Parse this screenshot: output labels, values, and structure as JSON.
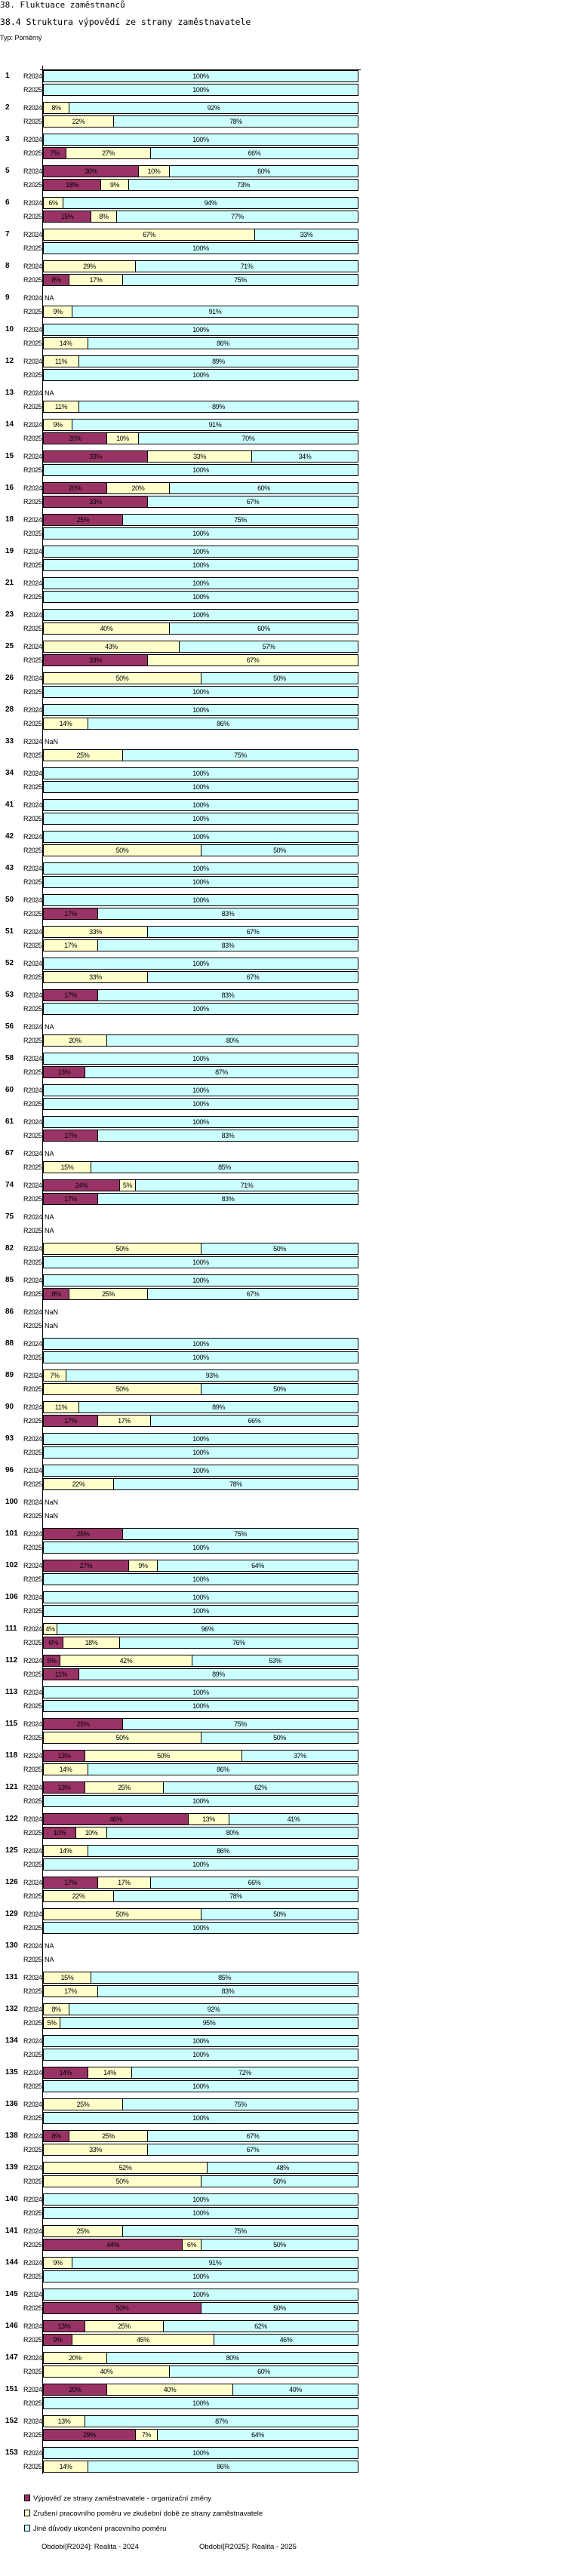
{
  "header": {
    "title": "38. Fluktuace zaměstnanců",
    "subtitle": "38.4 Struktura výpovědí ze strany zaměstnavatele",
    "type_label": "Typ: Poměrný"
  },
  "chart_data": {
    "type": "bar",
    "orientation": "horizontal",
    "stacked": "percent",
    "xlim": [
      0,
      100
    ],
    "periods": [
      "R2024",
      "R2025"
    ],
    "series": [
      {
        "name": "Výpověď ze strany zaměstnavatele - organizační změny",
        "color": "#993366"
      },
      {
        "name": "Zrušení pracovního poměru ve zkušební době ze strany zaměstnavatele",
        "color": "#ffffcc"
      },
      {
        "name": "Jiné důvody ukončení pracovního poměru",
        "color": "#ccffff"
      }
    ],
    "groups": [
      {
        "id": "1",
        "R2024": [
          0,
          0,
          100
        ],
        "R2025": [
          0,
          0,
          100
        ]
      },
      {
        "id": "2",
        "R2024": [
          0,
          8,
          92
        ],
        "R2025": [
          0,
          22,
          78
        ]
      },
      {
        "id": "3",
        "R2024": [
          0,
          0,
          100
        ],
        "R2025": [
          7,
          27,
          66
        ]
      },
      {
        "id": "5",
        "R2024": [
          30,
          10,
          60
        ],
        "R2025": [
          18,
          9,
          73
        ]
      },
      {
        "id": "6",
        "R2024": [
          0,
          6,
          94
        ],
        "R2025": [
          15,
          8,
          77
        ]
      },
      {
        "id": "7",
        "R2024": [
          0,
          67,
          33
        ],
        "R2025": [
          0,
          0,
          100
        ]
      },
      {
        "id": "8",
        "R2024": [
          0,
          29,
          71
        ],
        "R2025": [
          8,
          17,
          75
        ]
      },
      {
        "id": "9",
        "R2024": "NA",
        "R2025": [
          0,
          9,
          91
        ]
      },
      {
        "id": "10",
        "R2024": [
          0,
          0,
          100
        ],
        "R2025": [
          0,
          14,
          86
        ]
      },
      {
        "id": "12",
        "R2024": [
          0,
          11,
          89
        ],
        "R2025": [
          0,
          0,
          100
        ]
      },
      {
        "id": "13",
        "R2024": "NA",
        "R2025": [
          0,
          11,
          89
        ]
      },
      {
        "id": "14",
        "R2024": [
          0,
          9,
          91
        ],
        "R2025": [
          20,
          10,
          70
        ]
      },
      {
        "id": "15",
        "R2024": [
          33,
          33,
          34
        ],
        "R2025": [
          0,
          0,
          100
        ]
      },
      {
        "id": "16",
        "R2024": [
          20,
          20,
          60
        ],
        "R2025": [
          33,
          0,
          67
        ]
      },
      {
        "id": "18",
        "R2024": [
          25,
          0,
          75
        ],
        "R2025": [
          0,
          0,
          100
        ]
      },
      {
        "id": "19",
        "R2024": [
          0,
          0,
          100
        ],
        "R2025": [
          0,
          0,
          100
        ]
      },
      {
        "id": "21",
        "R2024": [
          0,
          0,
          100
        ],
        "R2025": [
          0,
          0,
          100
        ]
      },
      {
        "id": "23",
        "R2024": [
          0,
          0,
          100
        ],
        "R2025": [
          0,
          40,
          60
        ]
      },
      {
        "id": "25",
        "R2024": [
          0,
          43,
          57
        ],
        "R2025": [
          33,
          67,
          0
        ]
      },
      {
        "id": "26",
        "R2024": [
          0,
          50,
          50
        ],
        "R2025": [
          0,
          0,
          100
        ]
      },
      {
        "id": "28",
        "R2024": [
          0,
          0,
          100
        ],
        "R2025": [
          0,
          14,
          86
        ]
      },
      {
        "id": "33",
        "R2024": "NaN",
        "R2025": [
          0,
          25,
          75
        ]
      },
      {
        "id": "34",
        "R2024": [
          0,
          0,
          100
        ],
        "R2025": [
          0,
          0,
          100
        ]
      },
      {
        "id": "41",
        "R2024": [
          0,
          0,
          100
        ],
        "R2025": [
          0,
          0,
          100
        ]
      },
      {
        "id": "42",
        "R2024": [
          0,
          0,
          100
        ],
        "R2025": [
          0,
          50,
          50
        ]
      },
      {
        "id": "43",
        "R2024": [
          0,
          0,
          100
        ],
        "R2025": [
          0,
          0,
          100
        ]
      },
      {
        "id": "50",
        "R2024": [
          0,
          0,
          100
        ],
        "R2025": [
          17,
          0,
          83
        ]
      },
      {
        "id": "51",
        "R2024": [
          0,
          33,
          67
        ],
        "R2025": [
          0,
          17,
          83
        ]
      },
      {
        "id": "52",
        "R2024": [
          0,
          0,
          100
        ],
        "R2025": [
          0,
          33,
          67
        ]
      },
      {
        "id": "53",
        "R2024": [
          17,
          0,
          83
        ],
        "R2025": [
          0,
          0,
          100
        ]
      },
      {
        "id": "56",
        "R2024": "NA",
        "R2025": [
          0,
          20,
          80
        ]
      },
      {
        "id": "58",
        "R2024": [
          0,
          0,
          100
        ],
        "R2025": [
          13,
          0,
          87
        ]
      },
      {
        "id": "60",
        "R2024": [
          0,
          0,
          100
        ],
        "R2025": [
          0,
          0,
          100
        ]
      },
      {
        "id": "61",
        "R2024": [
          0,
          0,
          100
        ],
        "R2025": [
          17,
          0,
          83
        ]
      },
      {
        "id": "67",
        "R2024": "NA",
        "R2025": [
          0,
          15,
          85
        ]
      },
      {
        "id": "74",
        "R2024": [
          24,
          5,
          71
        ],
        "R2025": [
          17,
          0,
          83
        ]
      },
      {
        "id": "75",
        "R2024": "NA",
        "R2025": "NA"
      },
      {
        "id": "82",
        "R2024": [
          0,
          50,
          50
        ],
        "R2025": [
          0,
          0,
          100
        ]
      },
      {
        "id": "85",
        "R2024": [
          0,
          0,
          100
        ],
        "R2025": [
          8,
          25,
          67
        ]
      },
      {
        "id": "86",
        "R2024": "NaN",
        "R2025": "NaN"
      },
      {
        "id": "88",
        "R2024": [
          0,
          0,
          100
        ],
        "R2025": [
          0,
          0,
          100
        ]
      },
      {
        "id": "89",
        "R2024": [
          0,
          7,
          93
        ],
        "R2025": [
          0,
          50,
          50
        ]
      },
      {
        "id": "90",
        "R2024": [
          0,
          11,
          89
        ],
        "R2025": [
          17,
          17,
          66
        ]
      },
      {
        "id": "93",
        "R2024": [
          0,
          0,
          100
        ],
        "R2025": [
          0,
          0,
          100
        ]
      },
      {
        "id": "96",
        "R2024": [
          0,
          0,
          100
        ],
        "R2025": [
          0,
          22,
          78
        ]
      },
      {
        "id": "100",
        "R2024": "NaN",
        "R2025": "NaN"
      },
      {
        "id": "101",
        "R2024": [
          25,
          0,
          75
        ],
        "R2025": [
          0,
          0,
          100
        ]
      },
      {
        "id": "102",
        "R2024": [
          27,
          9,
          64
        ],
        "R2025": [
          0,
          0,
          100
        ]
      },
      {
        "id": "106",
        "R2024": [
          0,
          0,
          100
        ],
        "R2025": [
          0,
          0,
          100
        ]
      },
      {
        "id": "111",
        "R2024": [
          0,
          4,
          96
        ],
        "R2025": [
          6,
          18,
          76
        ]
      },
      {
        "id": "112",
        "R2024": [
          5,
          42,
          53
        ],
        "R2025": [
          11,
          0,
          89
        ]
      },
      {
        "id": "113",
        "R2024": [
          0,
          0,
          100
        ],
        "R2025": [
          0,
          0,
          100
        ]
      },
      {
        "id": "115",
        "R2024": [
          25,
          0,
          75
        ],
        "R2025": [
          0,
          50,
          50
        ]
      },
      {
        "id": "118",
        "R2024": [
          13,
          50,
          37
        ],
        "R2025": [
          0,
          14,
          86
        ]
      },
      {
        "id": "121",
        "R2024": [
          13,
          25,
          62
        ],
        "R2025": [
          0,
          0,
          100
        ]
      },
      {
        "id": "122",
        "R2024": [
          46,
          13,
          41
        ],
        "R2025": [
          10,
          10,
          80
        ]
      },
      {
        "id": "125",
        "R2024": [
          0,
          14,
          86
        ],
        "R2025": [
          0,
          0,
          100
        ]
      },
      {
        "id": "126",
        "R2024": [
          17,
          17,
          66
        ],
        "R2025": [
          0,
          22,
          78
        ]
      },
      {
        "id": "129",
        "R2024": [
          0,
          50,
          50
        ],
        "R2025": [
          0,
          0,
          100
        ]
      },
      {
        "id": "130",
        "R2024": "NA",
        "R2025": "NA"
      },
      {
        "id": "131",
        "R2024": [
          0,
          15,
          85
        ],
        "R2025": [
          0,
          17,
          83
        ]
      },
      {
        "id": "132",
        "R2024": [
          0,
          8,
          92
        ],
        "R2025": [
          0,
          5,
          95
        ]
      },
      {
        "id": "134",
        "R2024": [
          0,
          0,
          100
        ],
        "R2025": [
          0,
          0,
          100
        ]
      },
      {
        "id": "135",
        "R2024": [
          14,
          14,
          72
        ],
        "R2025": [
          0,
          0,
          100
        ]
      },
      {
        "id": "136",
        "R2024": [
          0,
          25,
          75
        ],
        "R2025": [
          0,
          0,
          100
        ]
      },
      {
        "id": "138",
        "R2024": [
          8,
          25,
          67
        ],
        "R2025": [
          0,
          33,
          67
        ]
      },
      {
        "id": "139",
        "R2024": [
          0,
          52,
          48
        ],
        "R2025": [
          0,
          50,
          50
        ]
      },
      {
        "id": "140",
        "R2024": [
          0,
          0,
          100
        ],
        "R2025": [
          0,
          0,
          100
        ]
      },
      {
        "id": "141",
        "R2024": [
          0,
          25,
          75
        ],
        "R2025": [
          44,
          6,
          50
        ]
      },
      {
        "id": "144",
        "R2024": [
          0,
          9,
          91
        ],
        "R2025": [
          0,
          0,
          100
        ]
      },
      {
        "id": "145",
        "R2024": [
          0,
          0,
          100
        ],
        "R2025": [
          50,
          0,
          50
        ]
      },
      {
        "id": "146",
        "R2024": [
          13,
          25,
          62
        ],
        "R2025": [
          9,
          45,
          46
        ]
      },
      {
        "id": "147",
        "R2024": [
          0,
          20,
          80
        ],
        "R2025": [
          0,
          40,
          60
        ]
      },
      {
        "id": "151",
        "R2024": [
          20,
          40,
          40
        ],
        "R2025": [
          0,
          0,
          100
        ]
      },
      {
        "id": "152",
        "R2024": [
          0,
          13,
          87
        ],
        "R2025": [
          29,
          7,
          64
        ]
      },
      {
        "id": "153",
        "R2024": [
          0,
          0,
          100
        ],
        "R2025": [
          0,
          14,
          86
        ]
      }
    ]
  },
  "footer": {
    "period_1": "Období[R2024]: Realita - 2024",
    "period_2": "Období[R2025]: Realita - 2025"
  }
}
